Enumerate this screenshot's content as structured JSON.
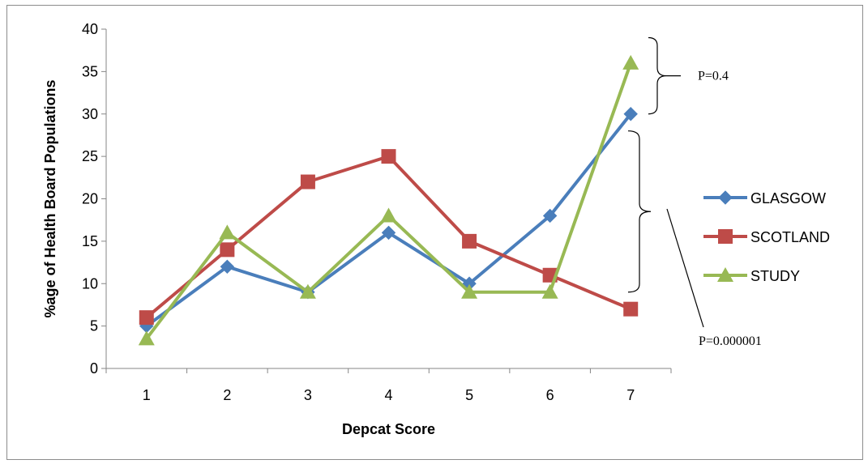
{
  "chart_data": {
    "type": "line",
    "title": "",
    "xlabel": "Depcat Score",
    "ylabel": "%age of Health Board Populations",
    "categories": [
      "1",
      "2",
      "3",
      "4",
      "5",
      "6",
      "7"
    ],
    "ylim": [
      0,
      40
    ],
    "yticks": [
      "0",
      "5",
      "10",
      "15",
      "20",
      "25",
      "30",
      "35",
      "40"
    ],
    "grid": false,
    "legend_position": "right",
    "series": [
      {
        "name": "GLASGOW",
        "marker": "diamond",
        "color": "#4a7ebb",
        "values": [
          5,
          12,
          9,
          16,
          10,
          18,
          30
        ]
      },
      {
        "name": "SCOTLAND",
        "marker": "square",
        "color": "#be4b48",
        "values": [
          6,
          14,
          22,
          25,
          15,
          11,
          7
        ]
      },
      {
        "name": "STUDY",
        "marker": "triangle",
        "color": "#98b954",
        "values": [
          3.5,
          16,
          9,
          18,
          9,
          9,
          36
        ]
      }
    ],
    "annotations": [
      {
        "text": "P=0.4",
        "brace_from": 30,
        "brace_to": 39
      },
      {
        "text": "P=0.000001",
        "brace_from": 9,
        "brace_to": 28
      }
    ]
  }
}
